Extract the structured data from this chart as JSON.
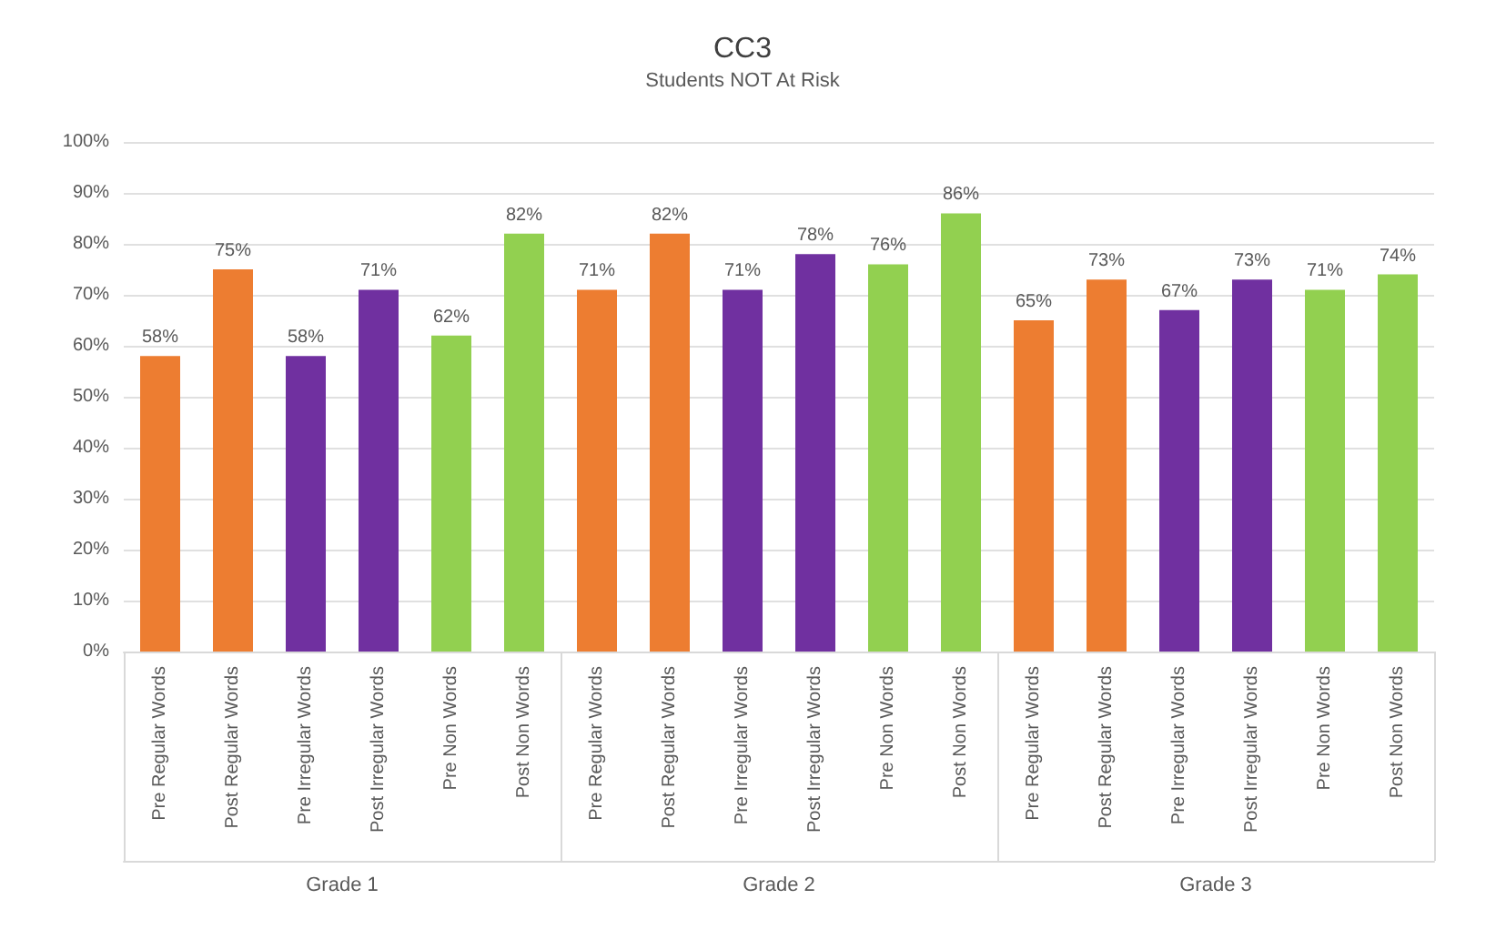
{
  "chart_data": {
    "type": "bar",
    "title": "CC3",
    "subtitle": "Students NOT At Risk",
    "categories": [
      "Pre Regular Words",
      "Post Regular Words",
      "Pre Irregular Words",
      "Post Irregular Words",
      "Pre Non Words",
      "Post Non Words",
      "Pre Regular Words",
      "Post Regular Words",
      "Pre Irregular Words",
      "Post Irregular Words",
      "Pre Non Words",
      "Post Non Words",
      "Pre Regular Words",
      "Post Regular Words",
      "Pre Irregular Words",
      "Post Irregular Words",
      "Pre Non Words",
      "Post Non Words"
    ],
    "values": [
      58,
      75,
      58,
      71,
      62,
      82,
      71,
      82,
      71,
      78,
      76,
      86,
      65,
      73,
      67,
      73,
      71,
      74
    ],
    "value_labels": [
      "58%",
      "75%",
      "58%",
      "71%",
      "62%",
      "82%",
      "71%",
      "82%",
      "71%",
      "78%",
      "76%",
      "86%",
      "65%",
      "73%",
      "67%",
      "73%",
      "71%",
      "74%"
    ],
    "colors": [
      "#ed7d31",
      "#ed7d31",
      "#7030a0",
      "#7030a0",
      "#92d050",
      "#92d050",
      "#ed7d31",
      "#ed7d31",
      "#7030a0",
      "#7030a0",
      "#92d050",
      "#92d050",
      "#ed7d31",
      "#ed7d31",
      "#7030a0",
      "#7030a0",
      "#92d050",
      "#92d050"
    ],
    "annotations": [
      "Grade 1",
      "Grade 2",
      "Grade 3"
    ],
    "ylim": [
      0,
      100
    ],
    "yticks": [
      {
        "value": 0,
        "label": "0%"
      },
      {
        "value": 10,
        "label": "10%"
      },
      {
        "value": 20,
        "label": "20%"
      },
      {
        "value": 30,
        "label": "30%"
      },
      {
        "value": 40,
        "label": "40%"
      },
      {
        "value": 50,
        "label": "50%"
      },
      {
        "value": 60,
        "label": "60%"
      },
      {
        "value": 70,
        "label": "70%"
      },
      {
        "value": 80,
        "label": "80%"
      },
      {
        "value": 90,
        "label": "90%"
      },
      {
        "value": 100,
        "label": "100%"
      }
    ],
    "grid": "y"
  }
}
